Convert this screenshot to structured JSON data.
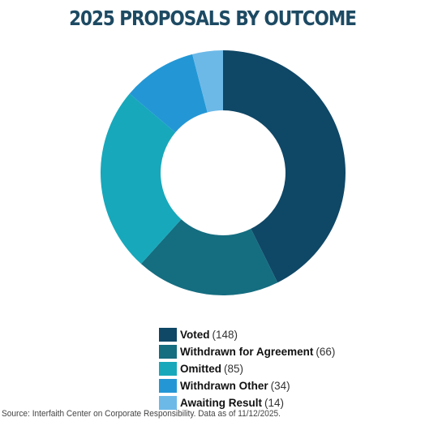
{
  "chart_data": {
    "type": "pie",
    "title": "2025 PROPOSALS BY OUTCOME",
    "donut": true,
    "legend_position": "bottom",
    "categories": [
      "Voted",
      "Withdrawn for Agreement",
      "Omitted",
      "Withdrawn Other",
      "Awaiting Result"
    ],
    "values": [
      148,
      66,
      85,
      34,
      14
    ],
    "value_labels": [
      "(148)",
      "(66)",
      "(85)",
      "(34)",
      "(14)"
    ],
    "colors": [
      "#0f4766",
      "#156d80",
      "#17a8bb",
      "#2397d5",
      "#6cb9e8"
    ]
  },
  "footer": {
    "source": "Source: Interfaith Center on Corporate Responsibility. Data as of 11/12/2025."
  }
}
